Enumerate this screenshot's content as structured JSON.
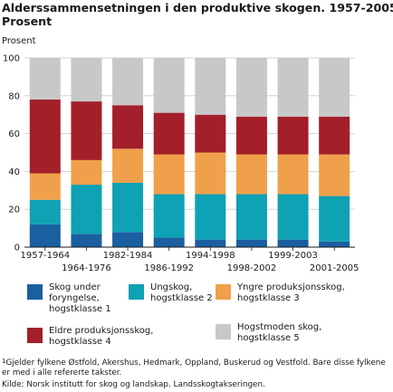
{
  "chart_data": {
    "type": "bar",
    "stacked": true,
    "title": "Alderssammensetningen i den produktive skogen. 1957-2005.",
    "subtitle": "Prosent",
    "ylabel": "Prosent",
    "ylim": [
      0,
      100
    ],
    "yticks": [
      0,
      20,
      40,
      60,
      80,
      100
    ],
    "grid": true,
    "categories": [
      "1957-1964",
      "1964-1976",
      "1982-1984",
      "1986-1992",
      "1994-1998",
      "1998-2002",
      "1999-2003",
      "2001-2005"
    ],
    "series": [
      {
        "name": "Skog under foryngelse, hogstklasse 1",
        "color": "#1a5fa0",
        "values": [
          12,
          7,
          8,
          5,
          4,
          4,
          4,
          3
        ]
      },
      {
        "name": "Ungskog, hogstklasse 2",
        "color": "#0fa1b4",
        "values": [
          13,
          26,
          26,
          23,
          24,
          24,
          24,
          24
        ]
      },
      {
        "name": "Yngre produksjonsskog, hogstklasse 3",
        "color": "#f0a04a",
        "values": [
          14,
          13,
          18,
          21,
          22,
          21,
          21,
          22
        ]
      },
      {
        "name": "Eldre produksjonsskog, hogstklasse 4",
        "color": "#a31f2a",
        "values": [
          39,
          31,
          23,
          22,
          20,
          20,
          20,
          20
        ]
      },
      {
        "name": "Hogstmoden skog, hogstklasse 5",
        "color": "#c8c8c8",
        "values": [
          22,
          23,
          25,
          29,
          30,
          31,
          31,
          31
        ]
      }
    ],
    "legend_position": "bottom"
  },
  "legend": [
    "Skog under\nforyngelse,\nhogstklasse 1",
    "Ungskog,\nhogstklasse 2",
    "Yngre produksjonsskog,\nhogstklasse 3",
    "Eldre produksjonsskog,\nhogstklasse 4",
    "Hogstmoden skog,\nhogstklasse 5"
  ],
  "footnote_sup": "1",
  "footnote": "Gjelder fylkene Østfold, Akershus, Hedmark, Oppland, Buskerud og Vestfold. Bare disse fylkene er med i alle refererte takster.",
  "source": "Kilde: Norsk institutt for skog og landskap. Landsskogtakseringen."
}
